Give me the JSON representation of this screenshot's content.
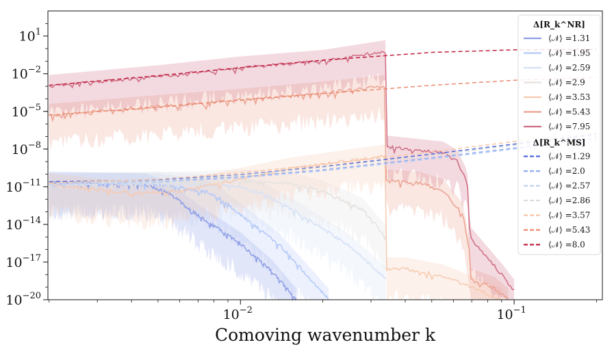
{
  "chart_data": {
    "type": "line",
    "title": "",
    "xlabel": "Comoving wavenumber k",
    "ylabel": "",
    "xscale": "log",
    "yscale": "log",
    "xlim": [
      0.00198,
      0.21
    ],
    "ylim": [
      1e-20,
      1000.0
    ],
    "x_ticks": [
      {
        "value": 0.01,
        "base": "10",
        "exp": "−2"
      },
      {
        "value": 0.1,
        "base": "10",
        "exp": "−1"
      }
    ],
    "y_ticks": [
      {
        "value": 10,
        "base": "10",
        "exp": "1"
      },
      {
        "value": 0.01,
        "base": "10",
        "exp": "−2"
      },
      {
        "value": 1e-05,
        "base": "10",
        "exp": "−5"
      },
      {
        "value": 1e-08,
        "base": "10",
        "exp": "−8"
      },
      {
        "value": 1e-11,
        "base": "10",
        "exp": "−11"
      },
      {
        "value": 1e-14,
        "base": "10",
        "exp": "−14"
      },
      {
        "value": 1e-17,
        "base": "10",
        "exp": "−17"
      },
      {
        "value": 1e-20,
        "base": "10",
        "exp": "−20"
      }
    ],
    "legend": {
      "placement": "right",
      "groups": [
        {
          "title": "Δ[R_k^NR]",
          "style": "solid",
          "entries": [
            {
              "label": "⟨𝒩⟩ =1.31",
              "color": "#8c9de6"
            },
            {
              "label": "⟨𝒩⟩ =1.95",
              "color": "#b3c7f7"
            },
            {
              "label": "⟨𝒩⟩ =2.59",
              "color": "#d4e0f5"
            },
            {
              "label": "⟨𝒩⟩ =2.9",
              "color": "#e4e1de"
            },
            {
              "label": "⟨𝒩⟩ =3.53",
              "color": "#f6c9b0"
            },
            {
              "label": "⟨𝒩⟩ =5.43",
              "color": "#eba08d"
            },
            {
              "label": "⟨𝒩⟩ =7.95",
              "color": "#cf6a82"
            }
          ]
        },
        {
          "title": "Δ[R_k^MS]",
          "style": "dashed",
          "entries": [
            {
              "label": "⟨𝒩⟩ =1.29",
              "color": "#4e68d8"
            },
            {
              "label": "⟨𝒩⟩ =2.0",
              "color": "#8caaf0"
            },
            {
              "label": "⟨𝒩⟩ =2.57",
              "color": "#bdd1f5"
            },
            {
              "label": "⟨𝒩⟩ =2.86",
              "color": "#dcdcdc"
            },
            {
              "label": "⟨𝒩⟩ =3.57",
              "color": "#f6c4a6"
            },
            {
              "label": "⟨𝒩⟩ =5.43",
              "color": "#ea8a6e"
            },
            {
              "label": "⟨𝒩⟩ =8.0",
              "color": "#be1e3c"
            }
          ]
        }
      ]
    },
    "series_ms": [
      {
        "name": "⟨𝒩⟩ =1.29",
        "x": [
          0.002,
          0.005,
          0.01,
          0.02,
          0.05,
          0.1,
          0.2
        ],
        "y": [
          2.5e-11,
          3.5e-11,
          9e-11,
          4e-10,
          4e-09,
          2.5e-08,
          1.5e-07
        ]
      },
      {
        "name": "⟨𝒩⟩ =2.0",
        "x": [
          0.002,
          0.005,
          0.01,
          0.02,
          0.05,
          0.1,
          0.2
        ],
        "y": [
          2e-11,
          2.8e-11,
          6e-11,
          2.2e-10,
          2e-09,
          1.2e-08,
          7e-08
        ]
      },
      {
        "name": "⟨𝒩⟩ =2.57",
        "x": [
          0.002,
          0.005,
          0.01,
          0.02,
          0.05,
          0.1,
          0.2
        ],
        "y": [
          1.5e-11,
          2.2e-11,
          5e-11,
          1.8e-10,
          1.6e-09,
          1e-08,
          5e-08
        ]
      },
      {
        "name": "⟨𝒩⟩ =2.86",
        "x": [
          0.002,
          0.005,
          0.01,
          0.02,
          0.05,
          0.1,
          0.2
        ],
        "y": [
          2e-11,
          3e-11,
          8e-11,
          3.5e-10,
          3e-09,
          2e-08,
          1e-07
        ]
      },
      {
        "name": "⟨𝒩⟩ =3.57",
        "x": [
          0.002,
          0.005,
          0.01,
          0.02,
          0.05,
          0.1,
          0.2
        ],
        "y": [
          2e-11,
          4e-11,
          1.3e-10,
          6e-10,
          6e-09,
          4e-08,
          2e-07
        ]
      },
      {
        "name": "⟨𝒩⟩ =5.43",
        "x": [
          0.002,
          0.005,
          0.01,
          0.02,
          0.05,
          0.1,
          0.2
        ],
        "y": [
          5e-06,
          2.2e-05,
          8e-05,
          0.00026,
          0.0012,
          0.003,
          0.005
        ]
      },
      {
        "name": "⟨𝒩⟩ =8.0",
        "x": [
          0.002,
          0.005,
          0.01,
          0.02,
          0.05,
          0.1,
          0.2
        ],
        "y": [
          0.0012,
          0.007,
          0.03,
          0.12,
          0.5,
          0.8,
          0.9
        ]
      }
    ],
    "series_nr": [
      {
        "name": "⟨𝒩⟩ =1.31",
        "x": [
          0.002,
          0.0045,
          0.0055,
          0.007,
          0.01,
          0.013,
          0.016
        ],
        "y": [
          2e-11,
          1.5e-11,
          3e-12,
          5e-14,
          3e-16,
          2e-18,
          1e-20
        ]
      },
      {
        "name": "⟨𝒩⟩ =1.95",
        "x": [
          0.002,
          0.005,
          0.0075,
          0.0085,
          0.01,
          0.014,
          0.021
        ],
        "y": [
          1.5e-11,
          1.5e-11,
          4e-12,
          1e-12,
          6e-14,
          2e-16,
          1e-20
        ]
      },
      {
        "name": "⟨𝒩⟩ =2.59",
        "x": [
          0.002,
          0.005,
          0.01,
          0.012,
          0.016,
          0.025,
          0.034
        ],
        "y": [
          1.5e-11,
          2e-11,
          1e-11,
          3e-12,
          1e-13,
          2e-16,
          5e-19
        ]
      },
      {
        "name": "⟨𝒩⟩ =2.9",
        "x": [
          0.002,
          0.006,
          0.01,
          0.015,
          0.02,
          0.028,
          0.034
        ],
        "y": [
          1.5e-11,
          2e-11,
          3e-11,
          2e-11,
          4e-12,
          1.5e-13,
          1e-15
        ]
      },
      {
        "name": "⟨𝒩⟩ =3.53",
        "x": [
          0.002,
          0.004,
          0.006,
          0.008,
          0.01,
          0.015,
          0.025,
          0.034,
          0.0341,
          0.04,
          0.055,
          0.07,
          0.09
        ],
        "y": [
          1.5e-11,
          3e-12,
          4e-12,
          1.5e-11,
          4e-11,
          2.5e-10,
          1.2e-09,
          3e-09,
          3e-18,
          3e-18,
          8e-19,
          1e-19,
          1e-20
        ]
      },
      {
        "name": "⟨𝒩⟩ =5.43",
        "x": [
          0.002,
          0.005,
          0.01,
          0.02,
          0.034,
          0.0341,
          0.045,
          0.055,
          0.065,
          0.069,
          0.0692,
          0.085,
          0.095
        ],
        "y": [
          5e-06,
          2.5e-05,
          8e-05,
          0.0003,
          0.001,
          3e-11,
          2e-11,
          5e-12,
          6e-14,
          4e-17,
          4e-19,
          8e-20,
          1e-20
        ]
      },
      {
        "name": "⟨𝒩⟩ =7.95",
        "x": [
          0.002,
          0.005,
          0.01,
          0.02,
          0.034,
          0.0341,
          0.045,
          0.055,
          0.062,
          0.067,
          0.0685,
          0.0687,
          0.08,
          0.09,
          0.1
        ],
        "y": [
          0.001,
          0.006,
          0.03,
          0.1,
          0.6,
          1.5e-08,
          8e-09,
          5e-09,
          1e-09,
          3e-11,
          2e-12,
          1e-15,
          2e-17,
          1e-18,
          5e-20
        ]
      }
    ]
  }
}
